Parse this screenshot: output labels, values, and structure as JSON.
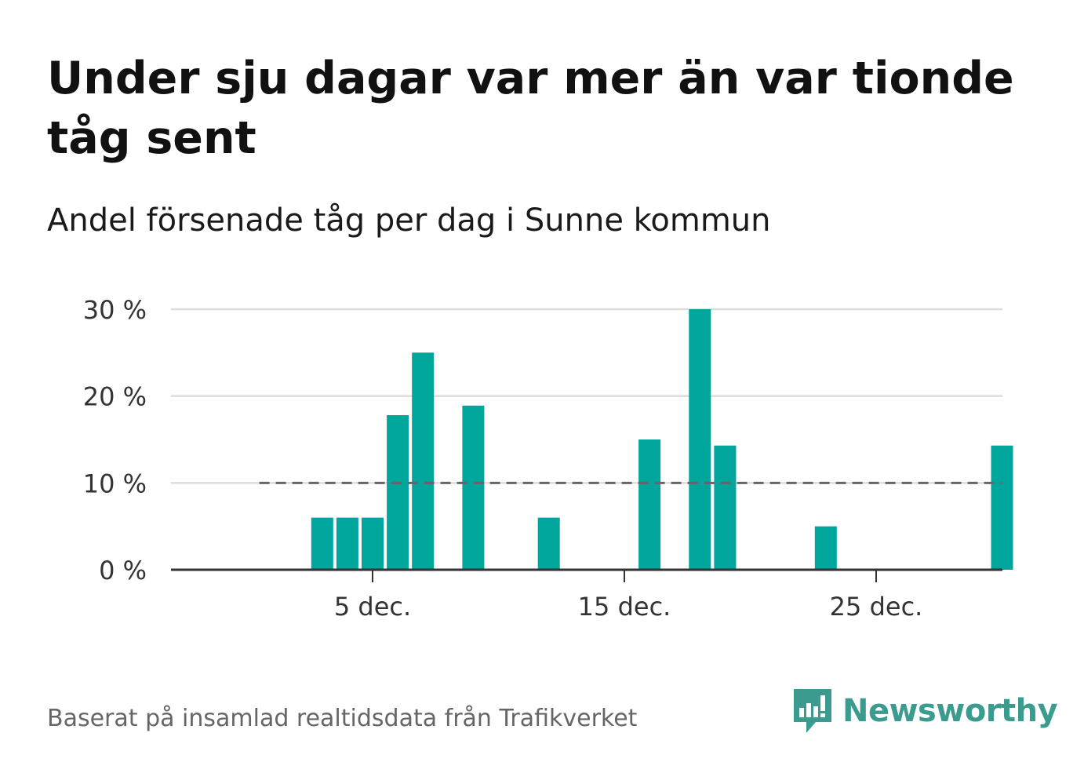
{
  "title": "Under sju dagar var mer än var tionde tåg sent",
  "subtitle": "Andel försenade tåg per dag i Sunne kommun",
  "source": "Baserat på insamlad realtidsdata från Trafikverket",
  "logo": {
    "text": "Newsworthy",
    "icon": "newsworthy-logo-icon"
  },
  "colors": {
    "bar": "#00a59c",
    "reference_line": "#666666",
    "grid": "#dddddd",
    "axis": "#333333",
    "brand": "#3a9b8e"
  },
  "chart_data": {
    "type": "bar",
    "x_unit": "day of December",
    "x_range": [
      1,
      30
    ],
    "days": [
      4,
      5,
      6,
      7,
      8,
      10,
      13,
      17,
      19,
      20,
      24,
      31
    ],
    "values": [
      6,
      6,
      6,
      17.8,
      25,
      18.9,
      6,
      15,
      30,
      14.3,
      5,
      14.3
    ],
    "ylim": [
      0,
      30
    ],
    "yticks": [
      0,
      10,
      20,
      30
    ],
    "ytick_labels": [
      "0 %",
      "10 %",
      "20 %",
      "30 %"
    ],
    "xticks": [
      6,
      16,
      26
    ],
    "xtick_labels": [
      "5 dec.",
      "15 dec.",
      "25 dec."
    ],
    "reference_line": {
      "value": 10,
      "style": "dashed",
      "from_day": 2,
      "to_day": 31
    },
    "grid": true
  }
}
